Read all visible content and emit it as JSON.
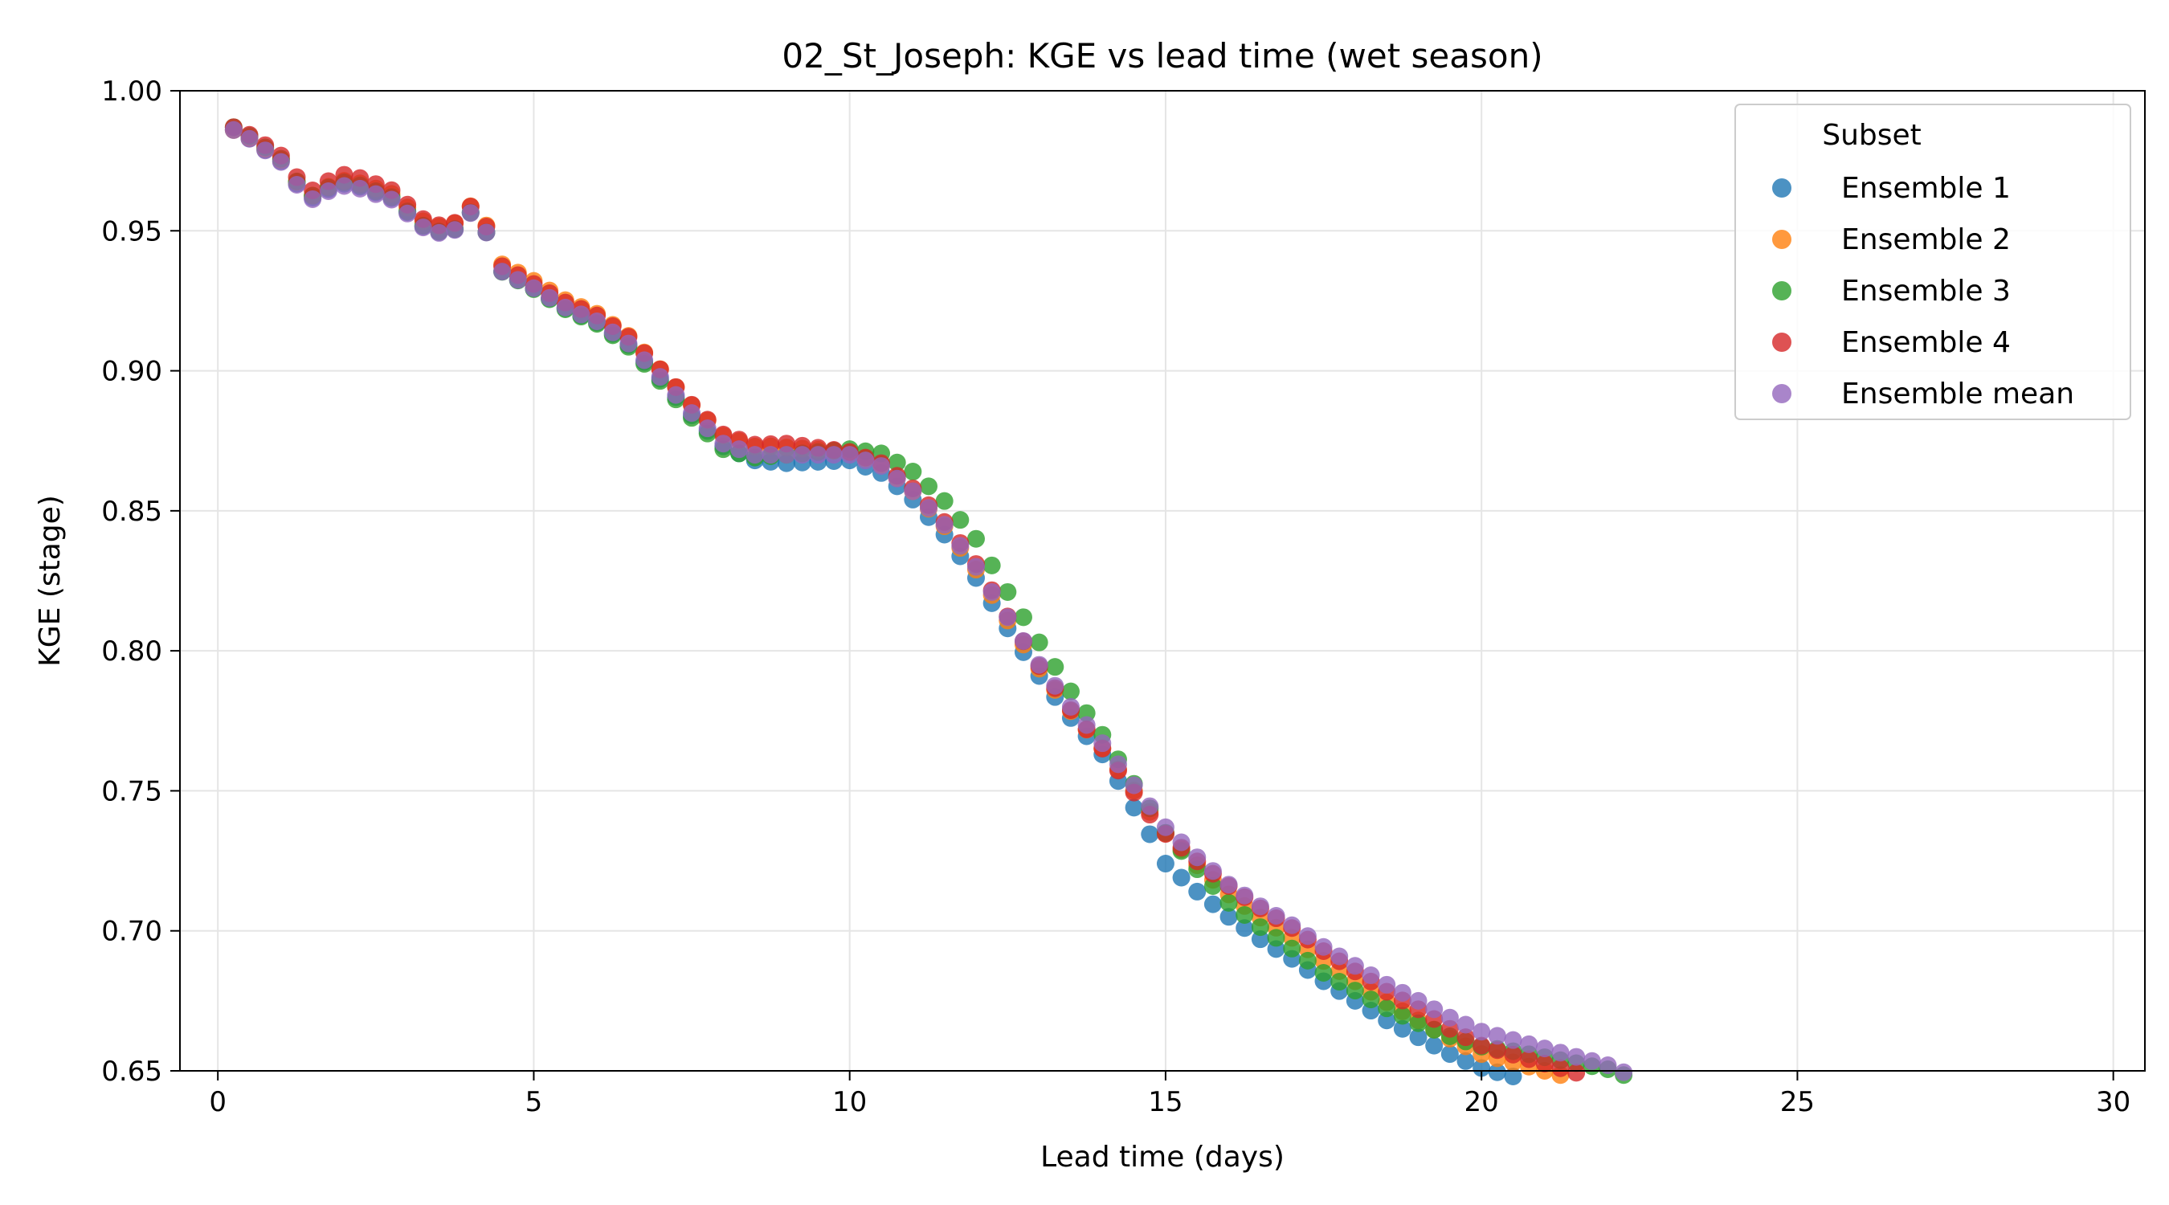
{
  "chart_data": {
    "type": "scatter",
    "title": "02_St_Joseph: KGE vs lead time (wet season)",
    "xlabel": "Lead time (days)",
    "ylabel": "KGE (stage)",
    "xlim": [
      -0.6,
      30.5
    ],
    "ylim": [
      0.65,
      1.0
    ],
    "xticks": [
      "0",
      "5",
      "10",
      "15",
      "20",
      "25",
      "30"
    ],
    "yticks": [
      "0.65",
      "0.70",
      "0.75",
      "0.80",
      "0.85",
      "0.90",
      "0.95",
      "1.00"
    ],
    "grid": true,
    "legend_title": "Subset",
    "legend_position": "top-right",
    "x_step": 0.25,
    "reference_curve": {
      "x": [
        0.25,
        0.5,
        0.75,
        1.0,
        1.25,
        1.5,
        1.75,
        2.0,
        2.25,
        2.5,
        2.75,
        3.0,
        3.25,
        3.5,
        3.75,
        4.0,
        4.25,
        4.5,
        5.0,
        5.5,
        6.0,
        6.5,
        7.0,
        7.5,
        8.0,
        8.5,
        9.0,
        9.5,
        10.0,
        10.5,
        11.0,
        11.5,
        12.0,
        12.5,
        13.0,
        13.5,
        14.0,
        14.5,
        15.0,
        15.5,
        16.0,
        16.5,
        17.0,
        17.5,
        18.0,
        18.5,
        19.0,
        19.5,
        20.0,
        20.5,
        21.0,
        21.5,
        22.0,
        22.5
      ],
      "y": [
        0.986,
        0.983,
        0.979,
        0.975,
        0.967,
        0.962,
        0.965,
        0.967,
        0.966,
        0.964,
        0.962,
        0.957,
        0.952,
        0.95,
        0.951,
        0.957,
        0.95,
        0.936,
        0.93,
        0.923,
        0.918,
        0.91,
        0.898,
        0.885,
        0.874,
        0.87,
        0.87,
        0.87,
        0.87,
        0.866,
        0.857,
        0.845,
        0.83,
        0.812,
        0.795,
        0.78,
        0.767,
        0.752,
        0.737,
        0.726,
        0.716,
        0.708,
        0.701,
        0.693,
        0.686,
        0.679,
        0.673,
        0.667,
        0.662,
        0.659,
        0.656,
        0.653,
        0.65,
        0.645
      ]
    },
    "series": [
      {
        "name": "Ensemble 1",
        "color": "#1f77b4",
        "x_start": 0.25,
        "x_end": 22.25,
        "offsets": [
          [
            0.25,
            0.0
          ],
          [
            8.0,
            -0.001
          ],
          [
            9.0,
            -0.003
          ],
          [
            10.0,
            -0.002
          ],
          [
            12.0,
            -0.004
          ],
          [
            14.0,
            -0.004
          ],
          [
            14.75,
            -0.01
          ],
          [
            15.0,
            -0.013
          ],
          [
            16.0,
            -0.011
          ],
          [
            18.0,
            -0.011
          ],
          [
            20.0,
            -0.011
          ],
          [
            22.25,
            -0.011
          ]
        ]
      },
      {
        "name": "Ensemble 2",
        "color": "#ff7f0e",
        "x_start": 0.25,
        "x_end": 22.25,
        "offsets": [
          [
            0.25,
            0.0
          ],
          [
            4.5,
            0.002
          ],
          [
            8.75,
            0.003
          ],
          [
            10.0,
            0.001
          ],
          [
            12.0,
            -0.001
          ],
          [
            14.75,
            -0.002
          ],
          [
            16.0,
            -0.003
          ],
          [
            18.0,
            -0.004
          ],
          [
            20.0,
            -0.006
          ],
          [
            22.25,
            -0.006
          ]
        ]
      },
      {
        "name": "Ensemble 3",
        "color": "#2ca02c",
        "x_start": 0.25,
        "x_end": 22.25,
        "offsets": [
          [
            0.25,
            0.001
          ],
          [
            8.0,
            -0.002
          ],
          [
            10.0,
            0.002
          ],
          [
            11.0,
            0.007
          ],
          [
            12.0,
            0.01
          ],
          [
            13.0,
            0.008
          ],
          [
            14.0,
            0.003
          ],
          [
            15.0,
            -0.002
          ],
          [
            16.0,
            -0.006
          ],
          [
            17.5,
            -0.008
          ],
          [
            19.0,
            -0.006
          ],
          [
            20.5,
            -0.002
          ],
          [
            22.25,
            0.001
          ]
        ]
      },
      {
        "name": "Ensemble 4",
        "color": "#d62728",
        "x_start": 0.25,
        "x_end": 22.25,
        "offsets": [
          [
            0.25,
            0.001
          ],
          [
            2.0,
            0.003
          ],
          [
            5.0,
            0.001
          ],
          [
            9.0,
            0.004
          ],
          [
            10.0,
            0.001
          ],
          [
            12.0,
            0.001
          ],
          [
            14.75,
            -0.003
          ],
          [
            16.0,
            0.0
          ],
          [
            17.0,
            0.0
          ],
          [
            19.0,
            -0.001
          ],
          [
            20.0,
            -0.003
          ],
          [
            22.25,
            -0.004
          ]
        ]
      },
      {
        "name": "Ensemble mean",
        "color": "#9467bd",
        "x_start": 0.25,
        "x_end": 22.25,
        "offsets": [
          [
            0.25,
            0.0
          ],
          [
            2.0,
            -0.001
          ],
          [
            8.0,
            0.0
          ],
          [
            12.0,
            0.0
          ],
          [
            15.0,
            0.0
          ],
          [
            17.0,
            0.001
          ],
          [
            19.0,
            0.002
          ],
          [
            20.0,
            0.002
          ],
          [
            22.25,
            0.002
          ]
        ]
      }
    ]
  }
}
